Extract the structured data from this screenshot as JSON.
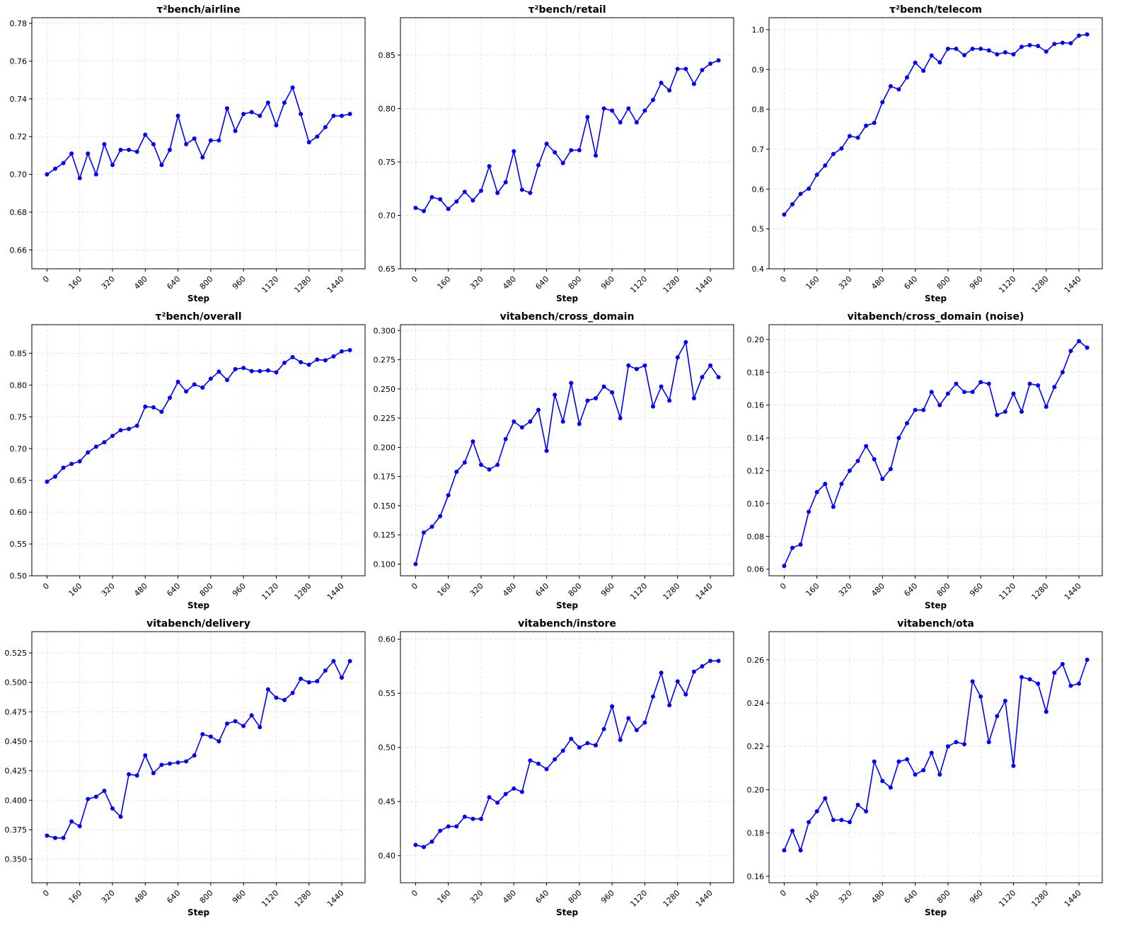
{
  "chart_data": [
    {
      "type": "line",
      "title": "τ²bench/airline",
      "xlabel": "Step",
      "x": [
        0,
        40,
        80,
        120,
        160,
        200,
        240,
        280,
        320,
        360,
        400,
        440,
        480,
        520,
        560,
        600,
        640,
        680,
        720,
        760,
        800,
        840,
        880,
        920,
        960,
        1000,
        1040,
        1080,
        1120,
        1160,
        1200,
        1240,
        1280,
        1320,
        1360,
        1400,
        1440,
        1480
      ],
      "values": [
        0.7,
        0.703,
        0.706,
        0.711,
        0.698,
        0.711,
        0.7,
        0.716,
        0.705,
        0.713,
        0.713,
        0.712,
        0.721,
        0.716,
        0.705,
        0.713,
        0.731,
        0.716,
        0.719,
        0.709,
        0.718,
        0.718,
        0.735,
        0.723,
        0.732,
        0.733,
        0.731,
        0.738,
        0.726,
        0.738,
        0.746,
        0.732,
        0.717,
        0.72,
        0.725,
        0.731,
        0.731,
        0.732
      ],
      "color": "#0000ff",
      "grid": true,
      "xlim": [
        -74,
        1554
      ],
      "xticks": [
        0,
        160,
        320,
        480,
        640,
        800,
        960,
        1120,
        1280,
        1440
      ],
      "ylim": [
        0.65,
        0.783
      ],
      "yticks": [
        0.66,
        0.68,
        {
          "value": 0.7,
          "label": "0.70"
        },
        0.72,
        0.74,
        0.76,
        0.78
      ]
    },
    {
      "type": "line",
      "title": "τ²bench/retail",
      "xlabel": "Step",
      "x": [
        0,
        40,
        80,
        120,
        160,
        200,
        240,
        280,
        320,
        360,
        400,
        440,
        480,
        520,
        560,
        600,
        640,
        680,
        720,
        760,
        800,
        840,
        880,
        920,
        960,
        1000,
        1040,
        1080,
        1120,
        1160,
        1200,
        1240,
        1280,
        1320,
        1360,
        1400,
        1440,
        1480
      ],
      "values": [
        0.707,
        0.704,
        0.717,
        0.715,
        0.706,
        0.713,
        0.722,
        0.714,
        0.723,
        0.746,
        0.721,
        0.731,
        0.76,
        0.724,
        0.721,
        0.747,
        0.767,
        0.759,
        0.749,
        0.761,
        0.761,
        0.792,
        0.756,
        0.8,
        0.798,
        0.787,
        0.8,
        0.787,
        0.798,
        0.808,
        0.824,
        0.817,
        0.837,
        0.837,
        0.823,
        0.836,
        0.842,
        0.845
      ],
      "color": "#0000ff",
      "grid": true,
      "xlim": [
        -74,
        1554
      ],
      "xticks": [
        0,
        160,
        320,
        480,
        640,
        800,
        960,
        1120,
        1280,
        1440
      ],
      "ylim": [
        0.65,
        0.885
      ],
      "yticks": [
        0.65,
        {
          "value": 0.7,
          "label": "0.70"
        },
        0.75,
        {
          "value": 0.8,
          "label": "0.80"
        },
        0.85
      ]
    },
    {
      "type": "line",
      "title": "τ²bench/telecom",
      "xlabel": "Step",
      "x": [
        0,
        40,
        80,
        120,
        160,
        200,
        240,
        280,
        320,
        360,
        400,
        440,
        480,
        520,
        560,
        600,
        640,
        680,
        720,
        760,
        800,
        840,
        880,
        920,
        960,
        1000,
        1040,
        1080,
        1120,
        1160,
        1200,
        1240,
        1280,
        1320,
        1360,
        1400,
        1440,
        1480
      ],
      "values": [
        0.536,
        0.562,
        0.588,
        0.601,
        0.636,
        0.659,
        0.688,
        0.702,
        0.733,
        0.729,
        0.759,
        0.766,
        0.818,
        0.858,
        0.85,
        0.88,
        0.917,
        0.897,
        0.935,
        0.918,
        0.952,
        0.952,
        0.936,
        0.952,
        0.952,
        0.948,
        0.938,
        0.943,
        0.938,
        0.957,
        0.961,
        0.959,
        0.945,
        0.964,
        0.967,
        0.966,
        0.985,
        0.988
      ],
      "color": "#0000ff",
      "grid": true,
      "xlim": [
        -74,
        1554
      ],
      "xticks": [
        0,
        160,
        320,
        480,
        640,
        800,
        960,
        1120,
        1280,
        1440
      ],
      "ylim": [
        0.4,
        1.03
      ],
      "yticks": [
        0.4,
        0.5,
        0.6,
        0.7,
        0.8,
        0.9,
        {
          "value": 1,
          "label": "1.0"
        }
      ]
    },
    {
      "type": "line",
      "title": "τ²bench/overall",
      "xlabel": "Step",
      "x": [
        0,
        40,
        80,
        120,
        160,
        200,
        240,
        280,
        320,
        360,
        400,
        440,
        480,
        520,
        560,
        600,
        640,
        680,
        720,
        760,
        800,
        840,
        880,
        920,
        960,
        1000,
        1040,
        1080,
        1120,
        1160,
        1200,
        1240,
        1280,
        1320,
        1360,
        1400,
        1440,
        1480
      ],
      "values": [
        0.648,
        0.656,
        0.67,
        0.676,
        0.68,
        0.694,
        0.703,
        0.71,
        0.72,
        0.729,
        0.731,
        0.736,
        0.766,
        0.765,
        0.758,
        0.78,
        0.805,
        0.79,
        0.801,
        0.796,
        0.81,
        0.821,
        0.808,
        0.825,
        0.827,
        0.822,
        0.822,
        0.823,
        0.82,
        0.835,
        0.844,
        0.836,
        0.832,
        0.84,
        0.839,
        0.845,
        0.853,
        0.855
      ],
      "color": "#0000ff",
      "grid": true,
      "xlim": [
        -74,
        1554
      ],
      "xticks": [
        0,
        160,
        320,
        480,
        640,
        800,
        960,
        1120,
        1280,
        1440
      ],
      "ylim": [
        0.5,
        0.895
      ],
      "yticks": [
        {
          "value": 0.5,
          "label": "0.50"
        },
        0.55,
        {
          "value": 0.6,
          "label": "0.60"
        },
        0.65,
        {
          "value": 0.7,
          "label": "0.70"
        },
        0.75,
        {
          "value": 0.8,
          "label": "0.80"
        },
        0.85
      ]
    },
    {
      "type": "line",
      "title": "vitabench/cross_domain",
      "xlabel": "Step",
      "x": [
        0,
        40,
        80,
        120,
        160,
        200,
        240,
        280,
        320,
        360,
        400,
        440,
        480,
        520,
        560,
        600,
        640,
        680,
        720,
        760,
        800,
        840,
        880,
        920,
        960,
        1000,
        1040,
        1080,
        1120,
        1160,
        1200,
        1240,
        1280,
        1320,
        1360,
        1400,
        1440,
        1480
      ],
      "values": [
        0.1,
        0.127,
        0.132,
        0.141,
        0.159,
        0.179,
        0.187,
        0.205,
        0.185,
        0.181,
        0.185,
        0.207,
        0.222,
        0.217,
        0.222,
        0.232,
        0.197,
        0.245,
        0.222,
        0.255,
        0.22,
        0.24,
        0.242,
        0.252,
        0.247,
        0.225,
        0.27,
        0.267,
        0.27,
        0.235,
        0.252,
        0.24,
        0.277,
        0.29,
        0.242,
        0.26,
        0.27,
        0.26
      ],
      "color": "#0000ff",
      "grid": true,
      "xlim": [
        -74,
        1554
      ],
      "xticks": [
        0,
        160,
        320,
        480,
        640,
        800,
        960,
        1120,
        1280,
        1440
      ],
      "ylim": [
        0.09,
        0.305
      ],
      "yticks": [
        {
          "value": 0.1,
          "label": "0.100"
        },
        0.125,
        {
          "value": 0.15,
          "label": "0.150"
        },
        0.175,
        {
          "value": 0.2,
          "label": "0.200"
        },
        0.225,
        {
          "value": 0.25,
          "label": "0.250"
        },
        0.275,
        {
          "value": 0.3,
          "label": "0.300"
        }
      ]
    },
    {
      "type": "line",
      "title": "vitabench/cross_domain (noise)",
      "xlabel": "Step",
      "x": [
        0,
        40,
        80,
        120,
        160,
        200,
        240,
        280,
        320,
        360,
        400,
        440,
        480,
        520,
        560,
        600,
        640,
        680,
        720,
        760,
        800,
        840,
        880,
        920,
        960,
        1000,
        1040,
        1080,
        1120,
        1160,
        1200,
        1240,
        1280,
        1320,
        1360,
        1400,
        1440,
        1480
      ],
      "values": [
        0.062,
        0.073,
        0.075,
        0.095,
        0.107,
        0.112,
        0.098,
        0.112,
        0.12,
        0.126,
        0.135,
        0.127,
        0.115,
        0.121,
        0.14,
        0.149,
        0.157,
        0.157,
        0.168,
        0.16,
        0.167,
        0.173,
        0.168,
        0.168,
        0.174,
        0.173,
        0.154,
        0.156,
        0.167,
        0.156,
        0.173,
        0.172,
        0.159,
        0.171,
        0.18,
        0.193,
        0.199,
        0.195
      ],
      "color": "#0000ff",
      "grid": true,
      "xlim": [
        -74,
        1554
      ],
      "xticks": [
        0,
        160,
        320,
        480,
        640,
        800,
        960,
        1120,
        1280,
        1440
      ],
      "ylim": [
        0.056,
        0.209
      ],
      "yticks": [
        0.06,
        0.08,
        {
          "value": 0.1,
          "label": "0.10"
        },
        0.12,
        0.14,
        0.16,
        0.18,
        {
          "value": 0.2,
          "label": "0.20"
        }
      ]
    },
    {
      "type": "line",
      "title": "vitabench/delivery",
      "xlabel": "Step",
      "x": [
        0,
        40,
        80,
        120,
        160,
        200,
        240,
        280,
        320,
        360,
        400,
        440,
        480,
        520,
        560,
        600,
        640,
        680,
        720,
        760,
        800,
        840,
        880,
        920,
        960,
        1000,
        1040,
        1080,
        1120,
        1160,
        1200,
        1240,
        1280,
        1320,
        1360,
        1400,
        1440,
        1480
      ],
      "values": [
        0.37,
        0.368,
        0.368,
        0.382,
        0.378,
        0.401,
        0.403,
        0.408,
        0.393,
        0.386,
        0.422,
        0.421,
        0.438,
        0.423,
        0.43,
        0.431,
        0.432,
        0.433,
        0.438,
        0.456,
        0.454,
        0.45,
        0.465,
        0.467,
        0.463,
        0.472,
        0.462,
        0.494,
        0.487,
        0.485,
        0.491,
        0.503,
        0.5,
        0.501,
        0.51,
        0.518,
        0.504,
        0.518
      ],
      "color": "#0000ff",
      "grid": true,
      "xlim": [
        -74,
        1554
      ],
      "xticks": [
        0,
        160,
        320,
        480,
        640,
        800,
        960,
        1120,
        1280,
        1440
      ],
      "ylim": [
        0.33,
        0.543
      ],
      "yticks": [
        {
          "value": 0.35,
          "label": "0.350"
        },
        0.375,
        {
          "value": 0.4,
          "label": "0.400"
        },
        0.425,
        {
          "value": 0.45,
          "label": "0.450"
        },
        0.475,
        {
          "value": 0.5,
          "label": "0.500"
        },
        0.525
      ]
    },
    {
      "type": "line",
      "title": "vitabench/instore",
      "xlabel": "Step",
      "x": [
        0,
        40,
        80,
        120,
        160,
        200,
        240,
        280,
        320,
        360,
        400,
        440,
        480,
        520,
        560,
        600,
        640,
        680,
        720,
        760,
        800,
        840,
        880,
        920,
        960,
        1000,
        1040,
        1080,
        1120,
        1160,
        1200,
        1240,
        1280,
        1320,
        1360,
        1400,
        1440,
        1480
      ],
      "values": [
        0.41,
        0.408,
        0.413,
        0.423,
        0.427,
        0.427,
        0.436,
        0.434,
        0.434,
        0.454,
        0.449,
        0.457,
        0.462,
        0.459,
        0.488,
        0.485,
        0.48,
        0.489,
        0.497,
        0.508,
        0.5,
        0.504,
        0.502,
        0.517,
        0.538,
        0.507,
        0.527,
        0.516,
        0.523,
        0.547,
        0.569,
        0.539,
        0.561,
        0.549,
        0.57,
        0.575,
        0.58,
        0.58
      ],
      "color": "#0000ff",
      "grid": true,
      "xlim": [
        -74,
        1554
      ],
      "xticks": [
        0,
        160,
        320,
        480,
        640,
        800,
        960,
        1120,
        1280,
        1440
      ],
      "ylim": [
        0.375,
        0.607
      ],
      "yticks": [
        {
          "value": 0.4,
          "label": "0.40"
        },
        0.45,
        {
          "value": 0.5,
          "label": "0.50"
        },
        0.55,
        {
          "value": 0.6,
          "label": "0.60"
        }
      ]
    },
    {
      "type": "line",
      "title": "vitabench/ota",
      "xlabel": "Step",
      "x": [
        0,
        40,
        80,
        120,
        160,
        200,
        240,
        280,
        320,
        360,
        400,
        440,
        480,
        520,
        560,
        600,
        640,
        680,
        720,
        760,
        800,
        840,
        880,
        920,
        960,
        1000,
        1040,
        1080,
        1120,
        1160,
        1200,
        1240,
        1280,
        1320,
        1360,
        1400,
        1440,
        1480
      ],
      "values": [
        0.172,
        0.181,
        0.172,
        0.185,
        0.19,
        0.196,
        0.186,
        0.186,
        0.185,
        0.193,
        0.19,
        0.213,
        0.204,
        0.201,
        0.213,
        0.214,
        0.207,
        0.209,
        0.217,
        0.207,
        0.22,
        0.222,
        0.221,
        0.25,
        0.243,
        0.222,
        0.234,
        0.241,
        0.211,
        0.252,
        0.251,
        0.249,
        0.236,
        0.254,
        0.258,
        0.248,
        0.249,
        0.26
      ],
      "color": "#0000ff",
      "grid": true,
      "xlim": [
        -74,
        1554
      ],
      "xticks": [
        0,
        160,
        320,
        480,
        640,
        800,
        960,
        1120,
        1280,
        1440
      ],
      "ylim": [
        0.157,
        0.273
      ],
      "yticks": [
        0.16,
        0.18,
        {
          "value": 0.2,
          "label": "0.20"
        },
        0.22,
        0.24,
        0.26
      ]
    }
  ]
}
